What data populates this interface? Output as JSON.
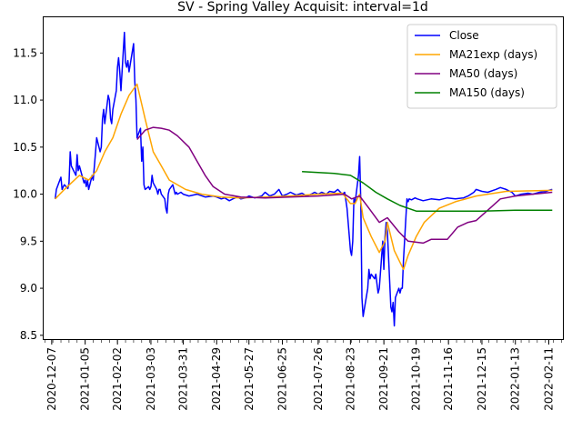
{
  "chart_data": {
    "type": "line",
    "title": "SV - Spring Valley Acquisit: interval=1d",
    "xlabel": "",
    "ylabel": "",
    "xlim": [
      "2020-11-30",
      "2022-02-24"
    ],
    "ylim": [
      8.45,
      11.88
    ],
    "grid": false,
    "legend_position": "top-right",
    "x_ticks": [
      "2020-12-07",
      "2021-01-05",
      "2021-02-02",
      "2021-03-03",
      "2021-03-31",
      "2021-04-29",
      "2021-05-27",
      "2021-06-25",
      "2021-07-26",
      "2021-08-23",
      "2021-09-21",
      "2021-10-19",
      "2021-11-16",
      "2021-12-15",
      "2022-01-13",
      "2022-02-11"
    ],
    "y_ticks": [
      8.5,
      9.0,
      9.5,
      10.0,
      10.5,
      11.0,
      11.5
    ],
    "series": [
      {
        "name": "Close",
        "color": "#0000ff",
        "points": [
          [
            "2020-12-10",
            9.95
          ],
          [
            "2020-12-11",
            10.05
          ],
          [
            "2020-12-14",
            10.15
          ],
          [
            "2020-12-15",
            10.18
          ],
          [
            "2020-12-16",
            10.05
          ],
          [
            "2020-12-17",
            10.08
          ],
          [
            "2020-12-18",
            10.1
          ],
          [
            "2020-12-21",
            10.06
          ],
          [
            "2020-12-22",
            10.12
          ],
          [
            "2020-12-23",
            10.45
          ],
          [
            "2020-12-24",
            10.3
          ],
          [
            "2020-12-28",
            10.2
          ],
          [
            "2020-12-29",
            10.42
          ],
          [
            "2020-12-30",
            10.25
          ],
          [
            "2020-12-31",
            10.3
          ],
          [
            "2021-01-04",
            10.12
          ],
          [
            "2021-01-05",
            10.15
          ],
          [
            "2021-01-06",
            10.08
          ],
          [
            "2021-01-07",
            10.15
          ],
          [
            "2021-01-08",
            10.05
          ],
          [
            "2021-01-11",
            10.2
          ],
          [
            "2021-01-12",
            10.15
          ],
          [
            "2021-01-13",
            10.3
          ],
          [
            "2021-01-14",
            10.45
          ],
          [
            "2021-01-15",
            10.6
          ],
          [
            "2021-01-18",
            10.45
          ],
          [
            "2021-01-19",
            10.5
          ],
          [
            "2021-01-20",
            10.8
          ],
          [
            "2021-01-21",
            10.9
          ],
          [
            "2021-01-22",
            10.75
          ],
          [
            "2021-01-25",
            11.05
          ],
          [
            "2021-01-26",
            11.0
          ],
          [
            "2021-01-27",
            10.8
          ],
          [
            "2021-01-28",
            10.75
          ],
          [
            "2021-01-29",
            10.9
          ],
          [
            "2021-02-01",
            11.1
          ],
          [
            "2021-02-02",
            11.35
          ],
          [
            "2021-02-03",
            11.45
          ],
          [
            "2021-02-04",
            11.3
          ],
          [
            "2021-02-05",
            11.1
          ],
          [
            "2021-02-08",
            11.72
          ],
          [
            "2021-02-09",
            11.4
          ],
          [
            "2021-02-10",
            11.35
          ],
          [
            "2021-02-11",
            11.42
          ],
          [
            "2021-02-12",
            11.3
          ],
          [
            "2021-02-16",
            11.6
          ],
          [
            "2021-02-17",
            11.2
          ],
          [
            "2021-02-18",
            11.0
          ],
          [
            "2021-02-19",
            10.6
          ],
          [
            "2021-02-22",
            10.7
          ],
          [
            "2021-02-23",
            10.35
          ],
          [
            "2021-02-24",
            10.5
          ],
          [
            "2021-02-25",
            10.1
          ],
          [
            "2021-02-26",
            10.05
          ],
          [
            "2021-03-01",
            10.08
          ],
          [
            "2021-03-02",
            10.05
          ],
          [
            "2021-03-03",
            10.08
          ],
          [
            "2021-03-04",
            10.2
          ],
          [
            "2021-03-05",
            10.12
          ],
          [
            "2021-03-08",
            10.05
          ],
          [
            "2021-03-09",
            10.0
          ],
          [
            "2021-03-10",
            10.05
          ],
          [
            "2021-03-11",
            10.05
          ],
          [
            "2021-03-12",
            10.0
          ],
          [
            "2021-03-15",
            9.95
          ],
          [
            "2021-03-16",
            9.85
          ],
          [
            "2021-03-17",
            9.8
          ],
          [
            "2021-03-18",
            10.0
          ],
          [
            "2021-03-19",
            10.05
          ],
          [
            "2021-03-22",
            10.1
          ],
          [
            "2021-03-23",
            10.05
          ],
          [
            "2021-03-24",
            10.0
          ],
          [
            "2021-03-25",
            10.02
          ],
          [
            "2021-03-26",
            10.0
          ],
          [
            "2021-03-29",
            10.02
          ],
          [
            "2021-03-31",
            10.0
          ],
          [
            "2021-04-05",
            9.98
          ],
          [
            "2021-04-12",
            10.0
          ],
          [
            "2021-04-19",
            9.97
          ],
          [
            "2021-04-26",
            9.98
          ],
          [
            "2021-04-29",
            9.97
          ],
          [
            "2021-05-03",
            9.95
          ],
          [
            "2021-05-06",
            9.96
          ],
          [
            "2021-05-10",
            9.93
          ],
          [
            "2021-05-13",
            9.95
          ],
          [
            "2021-05-17",
            9.97
          ],
          [
            "2021-05-20",
            9.95
          ],
          [
            "2021-05-24",
            9.96
          ],
          [
            "2021-05-27",
            9.98
          ],
          [
            "2021-06-01",
            9.96
          ],
          [
            "2021-06-07",
            9.98
          ],
          [
            "2021-06-10",
            10.02
          ],
          [
            "2021-06-14",
            9.98
          ],
          [
            "2021-06-18",
            10.0
          ],
          [
            "2021-06-22",
            10.05
          ],
          [
            "2021-06-25",
            9.98
          ],
          [
            "2021-06-29",
            10.0
          ],
          [
            "2021-07-02",
            10.02
          ],
          [
            "2021-07-07",
            9.99
          ],
          [
            "2021-07-12",
            10.01
          ],
          [
            "2021-07-16",
            9.98
          ],
          [
            "2021-07-20",
            10.0
          ],
          [
            "2021-07-23",
            10.02
          ],
          [
            "2021-07-26",
            10.0
          ],
          [
            "2021-07-29",
            10.02
          ],
          [
            "2021-08-02",
            10.0
          ],
          [
            "2021-08-05",
            10.03
          ],
          [
            "2021-08-09",
            10.02
          ],
          [
            "2021-08-12",
            10.05
          ],
          [
            "2021-08-16",
            10.0
          ],
          [
            "2021-08-18",
            10.02
          ],
          [
            "2021-08-20",
            9.85
          ],
          [
            "2021-08-23",
            9.4
          ],
          [
            "2021-08-24",
            9.35
          ],
          [
            "2021-08-25",
            9.5
          ],
          [
            "2021-08-26",
            9.95
          ],
          [
            "2021-08-27",
            9.9
          ],
          [
            "2021-08-30",
            10.2
          ],
          [
            "2021-08-31",
            10.4
          ],
          [
            "2021-09-01",
            9.9
          ],
          [
            "2021-09-02",
            8.9
          ],
          [
            "2021-09-03",
            8.7
          ],
          [
            "2021-09-07",
            9.0
          ],
          [
            "2021-09-08",
            9.2
          ],
          [
            "2021-09-09",
            9.1
          ],
          [
            "2021-09-10",
            9.15
          ],
          [
            "2021-09-13",
            9.1
          ],
          [
            "2021-09-14",
            9.15
          ],
          [
            "2021-09-15",
            9.05
          ],
          [
            "2021-09-16",
            8.95
          ],
          [
            "2021-09-17",
            9.0
          ],
          [
            "2021-09-20",
            9.5
          ],
          [
            "2021-09-21",
            9.2
          ],
          [
            "2021-09-22",
            9.55
          ],
          [
            "2021-09-23",
            9.7
          ],
          [
            "2021-09-24",
            9.6
          ],
          [
            "2021-09-27",
            8.8
          ],
          [
            "2021-09-28",
            8.75
          ],
          [
            "2021-09-29",
            8.85
          ],
          [
            "2021-09-30",
            8.6
          ],
          [
            "2021-10-01",
            8.9
          ],
          [
            "2021-10-04",
            9.0
          ],
          [
            "2021-10-05",
            8.95
          ],
          [
            "2021-10-06",
            9.0
          ],
          [
            "2021-10-07",
            9.0
          ],
          [
            "2021-10-08",
            9.3
          ],
          [
            "2021-10-11",
            9.95
          ],
          [
            "2021-10-12",
            9.92
          ],
          [
            "2021-10-13",
            9.95
          ],
          [
            "2021-10-15",
            9.94
          ],
          [
            "2021-10-18",
            9.96
          ],
          [
            "2021-10-20",
            9.95
          ],
          [
            "2021-10-25",
            9.93
          ],
          [
            "2021-11-01",
            9.95
          ],
          [
            "2021-11-08",
            9.94
          ],
          [
            "2021-11-15",
            9.96
          ],
          [
            "2021-11-22",
            9.95
          ],
          [
            "2021-11-29",
            9.96
          ],
          [
            "2021-12-03",
            9.98
          ],
          [
            "2021-12-08",
            10.02
          ],
          [
            "2021-12-10",
            10.05
          ],
          [
            "2021-12-15",
            10.03
          ],
          [
            "2021-12-20",
            10.02
          ],
          [
            "2021-12-27",
            10.05
          ],
          [
            "2021-12-31",
            10.07
          ],
          [
            "2022-01-05",
            10.05
          ],
          [
            "2022-01-10",
            10.02
          ],
          [
            "2022-01-13",
            9.98
          ],
          [
            "2022-01-18",
            10.0
          ],
          [
            "2022-01-24",
            10.01
          ],
          [
            "2022-01-28",
            10.0
          ],
          [
            "2022-02-03",
            10.02
          ],
          [
            "2022-02-09",
            10.03
          ],
          [
            "2022-02-11",
            10.04
          ],
          [
            "2022-02-14",
            10.05
          ]
        ]
      },
      {
        "name": "MA21exp (days)",
        "color": "#ffa500",
        "points": [
          [
            "2020-12-10",
            9.95
          ],
          [
            "2020-12-18",
            10.05
          ],
          [
            "2020-12-31",
            10.2
          ],
          [
            "2021-01-08",
            10.15
          ],
          [
            "2021-01-15",
            10.25
          ],
          [
            "2021-01-22",
            10.45
          ],
          [
            "2021-01-29",
            10.6
          ],
          [
            "2021-02-05",
            10.85
          ],
          [
            "2021-02-12",
            11.05
          ],
          [
            "2021-02-19",
            11.17
          ],
          [
            "2021-02-26",
            10.8
          ],
          [
            "2021-03-05",
            10.45
          ],
          [
            "2021-03-12",
            10.3
          ],
          [
            "2021-03-19",
            10.15
          ],
          [
            "2021-04-02",
            10.05
          ],
          [
            "2021-04-16",
            10.0
          ],
          [
            "2021-05-03",
            9.97
          ],
          [
            "2021-05-20",
            9.96
          ],
          [
            "2021-06-10",
            9.97
          ],
          [
            "2021-07-01",
            9.98
          ],
          [
            "2021-07-26",
            10.0
          ],
          [
            "2021-08-16",
            10.01
          ],
          [
            "2021-08-23",
            9.9
          ],
          [
            "2021-08-27",
            9.9
          ],
          [
            "2021-08-31",
            10.0
          ],
          [
            "2021-09-03",
            9.75
          ],
          [
            "2021-09-10",
            9.55
          ],
          [
            "2021-09-17",
            9.38
          ],
          [
            "2021-09-22",
            9.5
          ],
          [
            "2021-09-24",
            9.7
          ],
          [
            "2021-09-30",
            9.4
          ],
          [
            "2021-10-08",
            9.2
          ],
          [
            "2021-10-12",
            9.35
          ],
          [
            "2021-10-19",
            9.55
          ],
          [
            "2021-10-26",
            9.7
          ],
          [
            "2021-11-08",
            9.85
          ],
          [
            "2021-11-22",
            9.92
          ],
          [
            "2021-12-10",
            9.98
          ],
          [
            "2022-01-05",
            10.03
          ],
          [
            "2022-02-14",
            10.04
          ]
        ]
      },
      {
        "name": "MA50 (days)",
        "color": "#800080",
        "points": [
          [
            "2021-02-19",
            10.58
          ],
          [
            "2021-02-26",
            10.68
          ],
          [
            "2021-03-05",
            10.71
          ],
          [
            "2021-03-12",
            10.7
          ],
          [
            "2021-03-19",
            10.68
          ],
          [
            "2021-03-26",
            10.62
          ],
          [
            "2021-04-05",
            10.5
          ],
          [
            "2021-04-12",
            10.35
          ],
          [
            "2021-04-19",
            10.2
          ],
          [
            "2021-04-26",
            10.08
          ],
          [
            "2021-05-06",
            10.0
          ],
          [
            "2021-05-20",
            9.97
          ],
          [
            "2021-06-10",
            9.96
          ],
          [
            "2021-07-01",
            9.97
          ],
          [
            "2021-07-26",
            9.98
          ],
          [
            "2021-08-18",
            10.0
          ],
          [
            "2021-08-24",
            9.95
          ],
          [
            "2021-08-31",
            9.98
          ],
          [
            "2021-09-08",
            9.85
          ],
          [
            "2021-09-17",
            9.7
          ],
          [
            "2021-09-24",
            9.75
          ],
          [
            "2021-10-04",
            9.6
          ],
          [
            "2021-10-12",
            9.5
          ],
          [
            "2021-10-25",
            9.48
          ],
          [
            "2021-11-01",
            9.52
          ],
          [
            "2021-11-15",
            9.52
          ],
          [
            "2021-11-24",
            9.65
          ],
          [
            "2021-12-03",
            9.7
          ],
          [
            "2021-12-10",
            9.72
          ],
          [
            "2021-12-22",
            9.85
          ],
          [
            "2021-12-31",
            9.95
          ],
          [
            "2022-01-13",
            9.98
          ],
          [
            "2022-01-28",
            10.0
          ],
          [
            "2022-02-14",
            10.02
          ]
        ]
      },
      {
        "name": "MA150 (days)",
        "color": "#008000",
        "points": [
          [
            "2021-07-12",
            10.24
          ],
          [
            "2021-07-26",
            10.23
          ],
          [
            "2021-08-09",
            10.22
          ],
          [
            "2021-08-23",
            10.2
          ],
          [
            "2021-09-03",
            10.12
          ],
          [
            "2021-09-14",
            10.02
          ],
          [
            "2021-09-24",
            9.95
          ],
          [
            "2021-10-05",
            9.88
          ],
          [
            "2021-10-19",
            9.82
          ],
          [
            "2021-11-16",
            9.82
          ],
          [
            "2021-12-15",
            9.82
          ],
          [
            "2022-01-13",
            9.83
          ],
          [
            "2022-02-14",
            9.83
          ]
        ]
      }
    ]
  }
}
